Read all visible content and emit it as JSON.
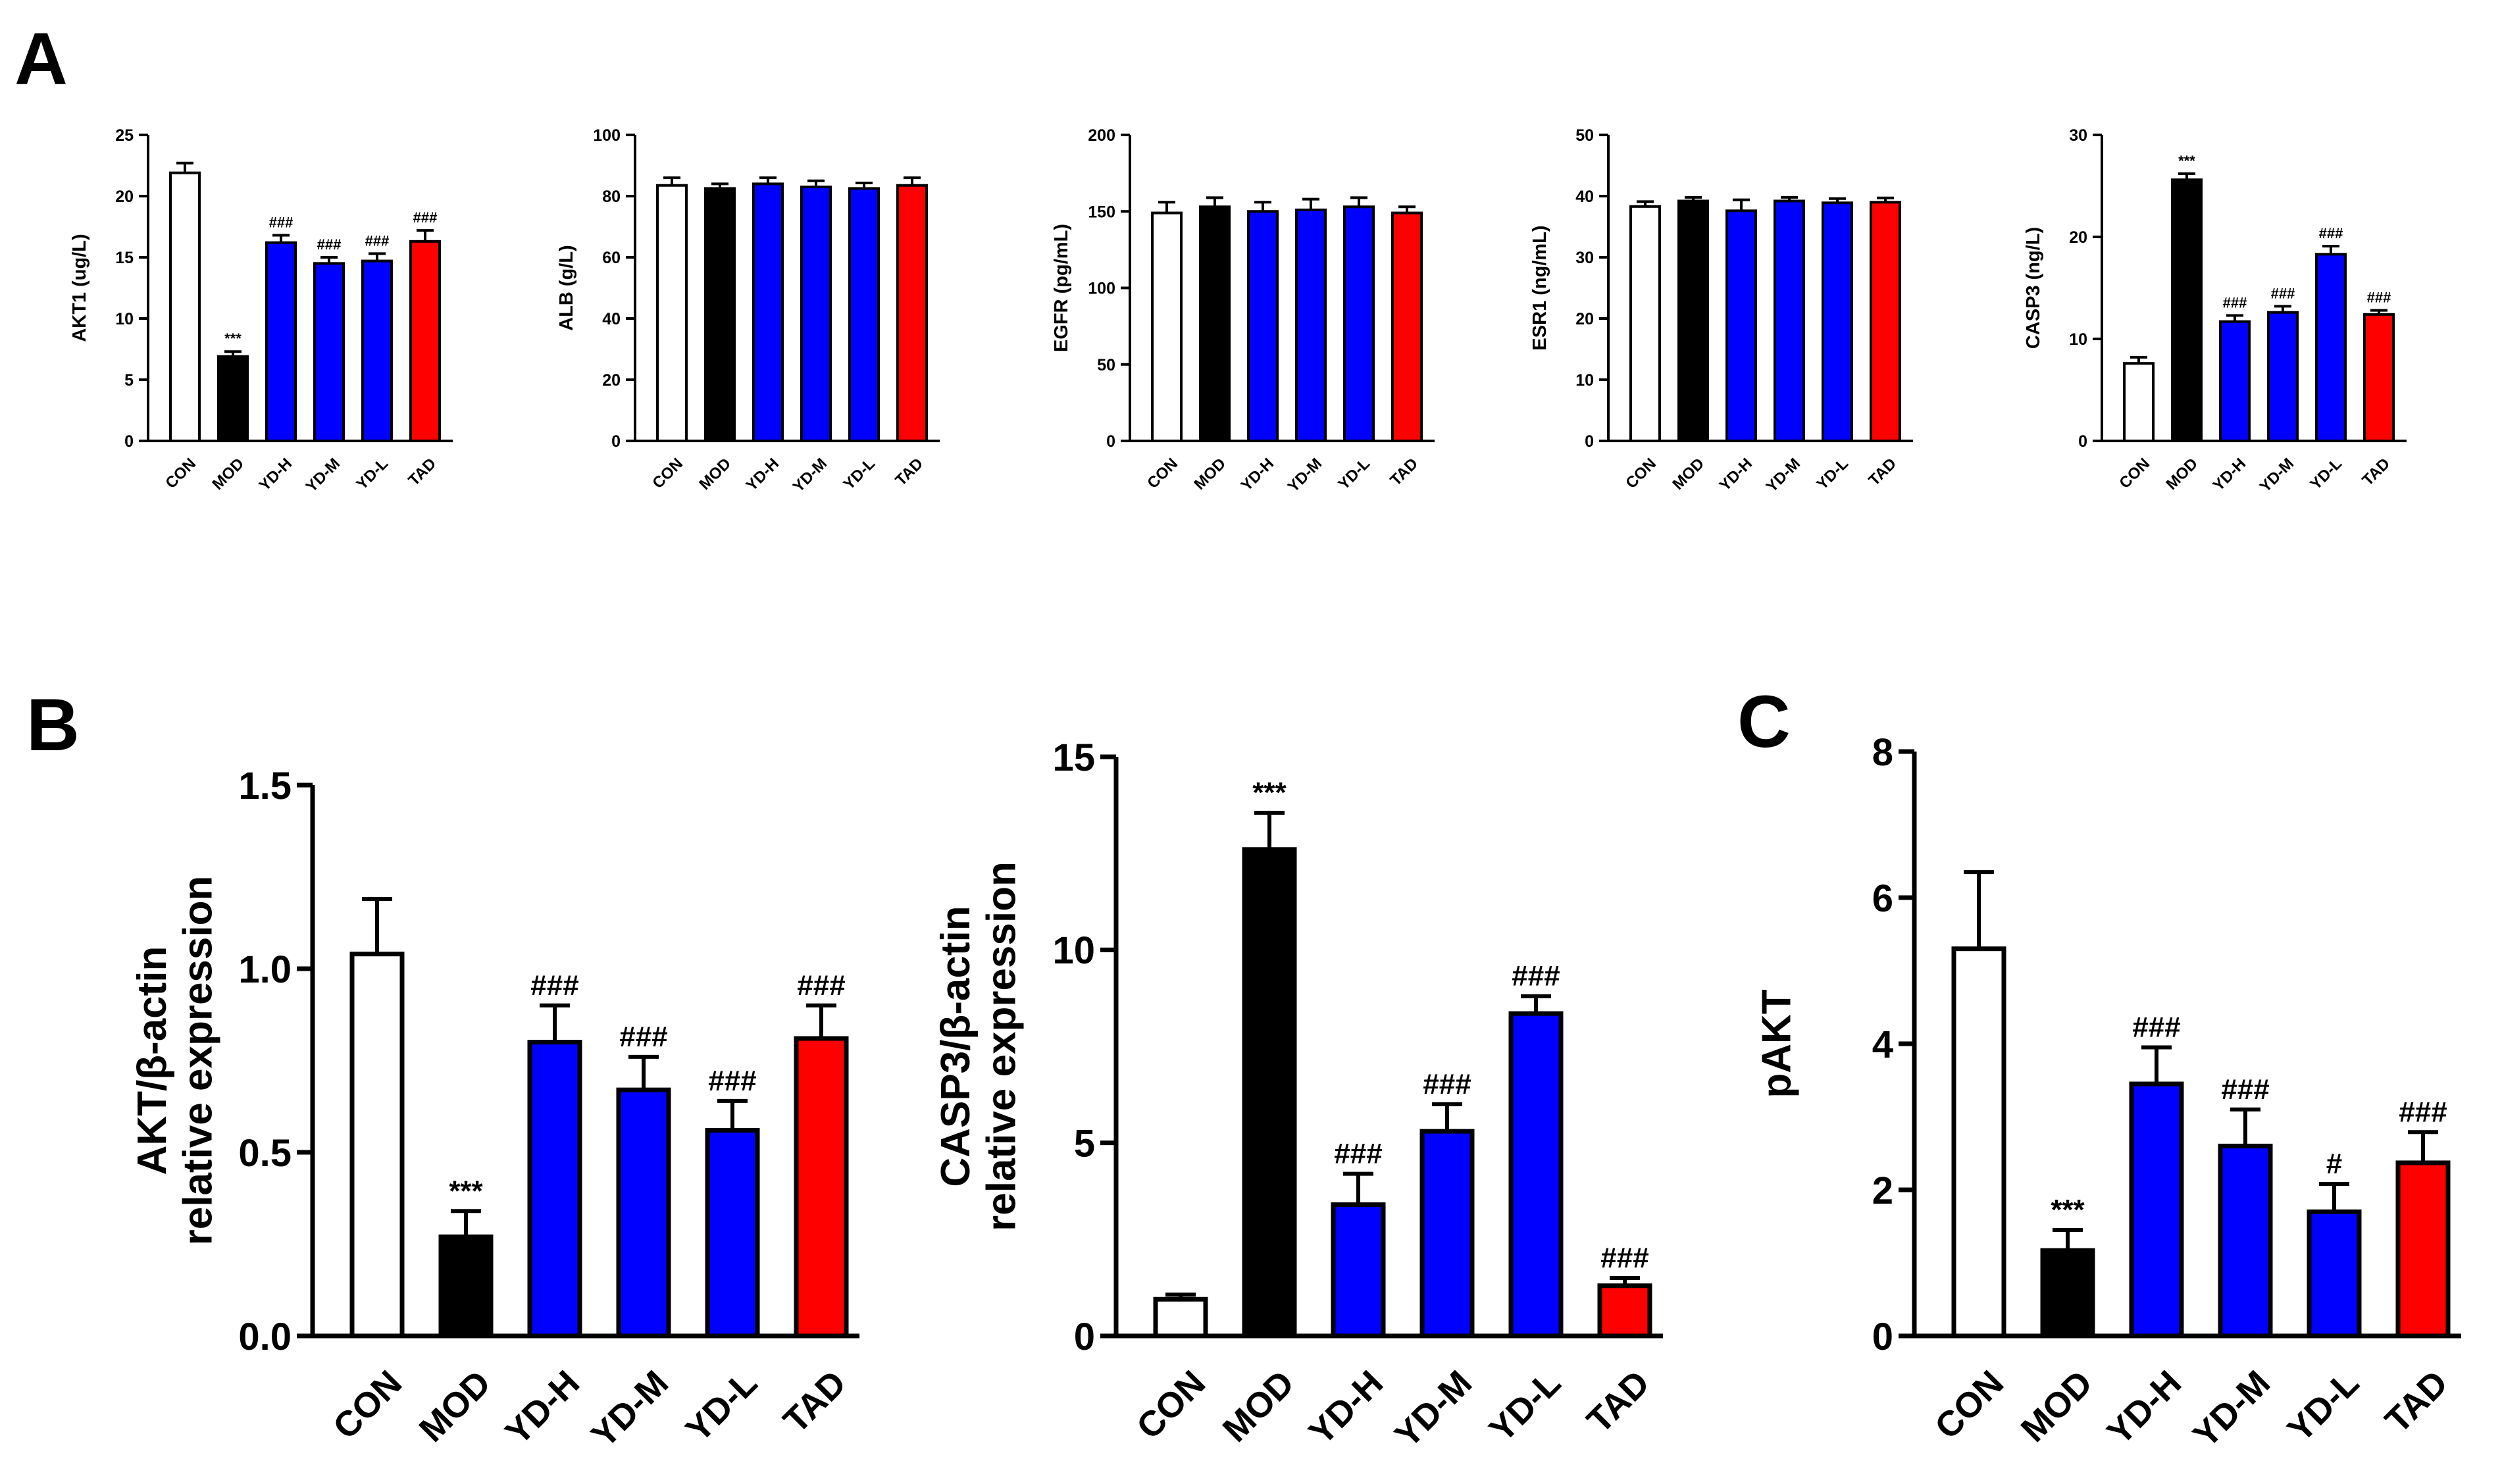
{
  "figure": {
    "panel_labels": [
      "A",
      "B",
      "C"
    ]
  },
  "colors": {
    "CON": "#ffffff",
    "MOD": "#000000",
    "YD-H": "#0000ff",
    "YD-M": "#0000ff",
    "YD-L": "#0000ff",
    "TAD": "#ff0000",
    "outline": "#000000"
  },
  "chart_data": [
    {
      "id": "akt1_serum",
      "type": "bar",
      "panel": "A",
      "categories": [
        "CON",
        "MOD",
        "YD-H",
        "YD-M",
        "YD-L",
        "TAD"
      ],
      "values": [
        21.9,
        6.9,
        16.2,
        14.5,
        14.7,
        16.3
      ],
      "errors": [
        0.8,
        0.4,
        0.6,
        0.5,
        0.6,
        0.9
      ],
      "significance": [
        "",
        "***",
        "###",
        "###",
        "###",
        "###"
      ],
      "ylabel": "AKT1 (ug/L)",
      "ylim": [
        0,
        25
      ],
      "yticks": [
        0,
        5,
        10,
        15,
        20,
        25
      ]
    },
    {
      "id": "alb_serum",
      "type": "bar",
      "panel": "A",
      "categories": [
        "CON",
        "MOD",
        "YD-H",
        "YD-M",
        "YD-L",
        "TAD"
      ],
      "values": [
        83.5,
        82.5,
        84,
        83,
        82.5,
        83.5
      ],
      "errors": [
        2.5,
        1.5,
        2,
        2,
        1.8,
        2.5
      ],
      "significance": [
        "",
        "",
        "",
        "",
        "",
        ""
      ],
      "ylabel": "ALB (g/L)",
      "ylim": [
        0,
        100
      ],
      "yticks": [
        0,
        20,
        40,
        60,
        80,
        100
      ]
    },
    {
      "id": "egfr_serum",
      "type": "bar",
      "panel": "A",
      "categories": [
        "CON",
        "MOD",
        "YD-H",
        "YD-M",
        "YD-L",
        "TAD"
      ],
      "values": [
        149,
        153,
        150,
        151,
        153,
        149
      ],
      "errors": [
        7,
        6,
        6,
        7,
        6,
        4
      ],
      "significance": [
        "",
        "",
        "",
        "",
        "",
        ""
      ],
      "ylabel": "EGFR (pg/mL)",
      "ylim": [
        0,
        200
      ],
      "yticks": [
        0,
        50,
        100,
        150,
        200
      ]
    },
    {
      "id": "esr1_serum",
      "type": "bar",
      "panel": "A",
      "categories": [
        "CON",
        "MOD",
        "YD-H",
        "YD-M",
        "YD-L",
        "TAD"
      ],
      "values": [
        38.3,
        39.2,
        37.6,
        39.2,
        38.9,
        39
      ],
      "errors": [
        0.8,
        0.6,
        1.8,
        0.6,
        0.7,
        0.7
      ],
      "significance": [
        "",
        "",
        "",
        "",
        "",
        ""
      ],
      "ylabel": "ESR1 (ng/mL)",
      "ylim": [
        0,
        50
      ],
      "yticks": [
        0,
        10,
        20,
        30,
        40,
        50
      ]
    },
    {
      "id": "casp3_serum",
      "type": "bar",
      "panel": "A",
      "categories": [
        "CON",
        "MOD",
        "YD-H",
        "YD-M",
        "YD-L",
        "TAD"
      ],
      "values": [
        7.6,
        25.6,
        11.7,
        12.6,
        18.3,
        12.4
      ],
      "errors": [
        0.6,
        0.6,
        0.6,
        0.6,
        0.8,
        0.4
      ],
      "significance": [
        "",
        "***",
        "###",
        "###",
        "###",
        "###"
      ],
      "ylabel": "CASP3 (ng/L)",
      "ylim": [
        0,
        30
      ],
      "yticks": [
        0,
        10,
        20,
        30
      ]
    },
    {
      "id": "akt_mrna",
      "type": "bar",
      "panel": "B",
      "categories": [
        "CON",
        "MOD",
        "YD-H",
        "YD-M",
        "YD-L",
        "TAD"
      ],
      "values": [
        1.04,
        0.27,
        0.8,
        0.67,
        0.56,
        0.81
      ],
      "errors": [
        0.15,
        0.07,
        0.1,
        0.09,
        0.08,
        0.09
      ],
      "significance": [
        "",
        "***",
        "###",
        "###",
        "###",
        "###"
      ],
      "ylabel": [
        "AKT/β-actin",
        "relative expression"
      ],
      "ylim": [
        0,
        1.5
      ],
      "yticks": [
        0.0,
        0.5,
        1.0,
        1.5
      ],
      "ytick_labels": [
        "0.0",
        "0.5",
        "1.0",
        "1.5"
      ]
    },
    {
      "id": "casp3_mrna",
      "type": "bar",
      "panel": "B",
      "categories": [
        "CON",
        "MOD",
        "YD-H",
        "YD-M",
        "YD-L",
        "TAD"
      ],
      "values": [
        0.95,
        12.6,
        3.4,
        5.3,
        8.35,
        1.3
      ],
      "errors": [
        0.12,
        0.95,
        0.8,
        0.7,
        0.45,
        0.2
      ],
      "significance": [
        "",
        "***",
        "###",
        "###",
        "###",
        "###"
      ],
      "ylabel": [
        "CASP3/β-actin",
        "relative expression"
      ],
      "ylim": [
        0,
        15
      ],
      "yticks": [
        0,
        5,
        10,
        15
      ]
    },
    {
      "id": "pakt_protein",
      "type": "bar",
      "panel": "C",
      "categories": [
        "CON",
        "MOD",
        "YD-H",
        "YD-M",
        "YD-L",
        "TAD"
      ],
      "values": [
        5.3,
        1.17,
        3.45,
        2.6,
        1.7,
        2.37
      ],
      "errors": [
        1.05,
        0.28,
        0.5,
        0.5,
        0.38,
        0.42
      ],
      "significance": [
        "",
        "***",
        "###",
        "###",
        "#",
        "###"
      ],
      "ylabel": "pAKT",
      "ylim": [
        0,
        8
      ],
      "yticks": [
        0,
        2,
        4,
        6,
        8
      ]
    }
  ]
}
